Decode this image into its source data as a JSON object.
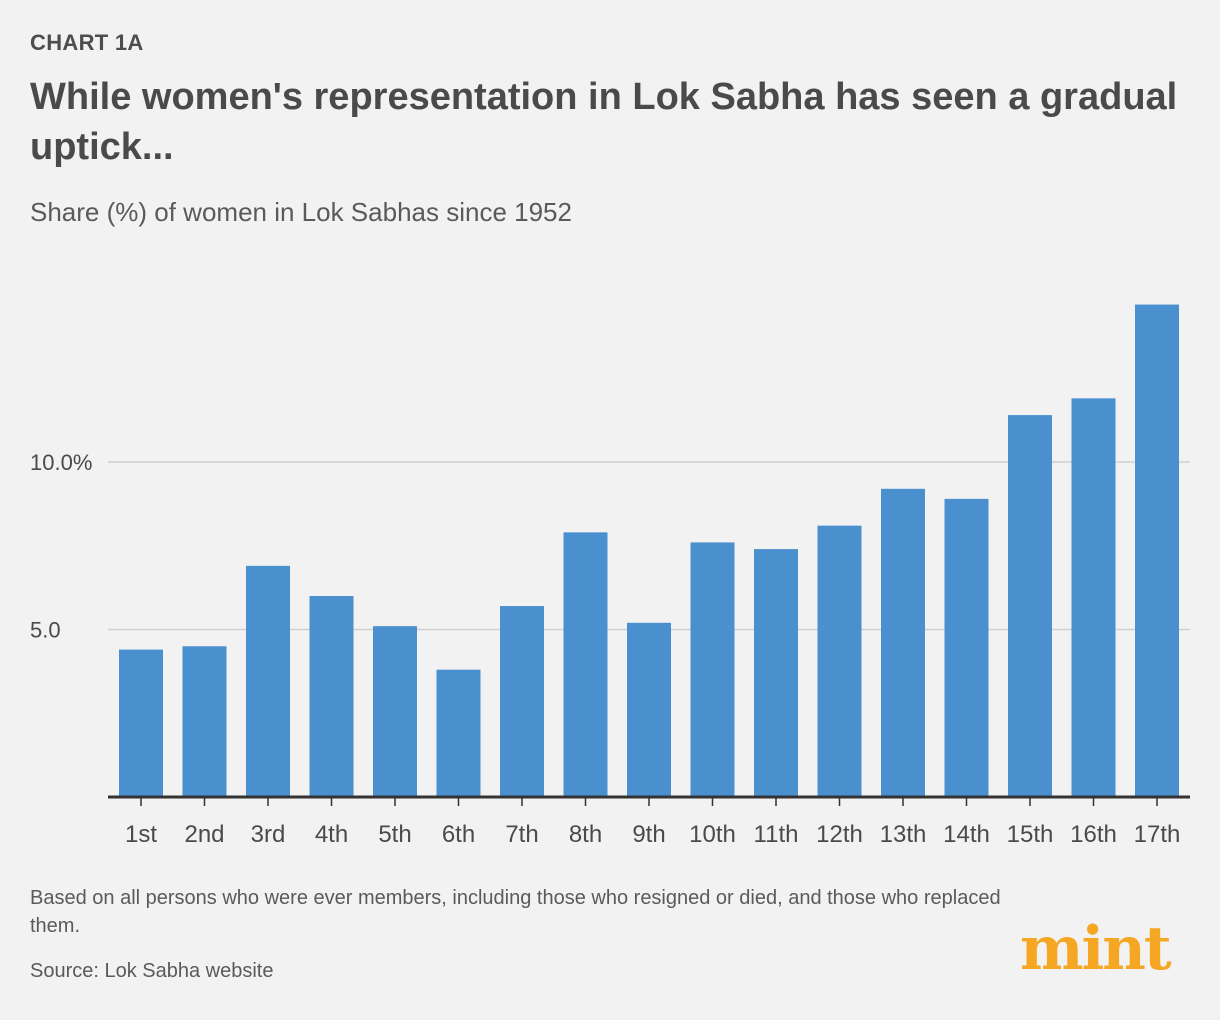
{
  "header": {
    "kicker": "CHART 1A",
    "title": "While women's representation in Lok Sabha has seen a gradual uptick...",
    "subtitle": "Share (%) of women in Lok Sabhas since 1952"
  },
  "footer": {
    "note": "Based on all persons who were ever members, including those who resigned or died, and those who replaced them.",
    "source": "Source: Lok Sabha website"
  },
  "brand": {
    "logo_text": "mint",
    "color": "#f5a623"
  },
  "colors": {
    "bar": "#4a90cf",
    "grid": "#cfcfcf",
    "axis": "#333333"
  },
  "chart_data": {
    "type": "bar",
    "title": "Share (%) of women in Lok Sabhas since 1952",
    "xlabel": "",
    "ylabel": "",
    "categories": [
      "1st",
      "2nd",
      "3rd",
      "4th",
      "5th",
      "6th",
      "7th",
      "8th",
      "9th",
      "10th",
      "11th",
      "12th",
      "13th",
      "14th",
      "15th",
      "16th",
      "17th"
    ],
    "values": [
      4.4,
      4.5,
      6.9,
      6.0,
      5.1,
      3.8,
      5.7,
      7.9,
      5.2,
      7.6,
      7.4,
      8.1,
      9.2,
      8.9,
      11.4,
      11.9,
      14.7
    ],
    "ylim": [
      0,
      14.7
    ],
    "yticks": [
      5,
      10
    ],
    "ytick_labels": [
      "5.0",
      "10.0%"
    ],
    "grid": true
  }
}
